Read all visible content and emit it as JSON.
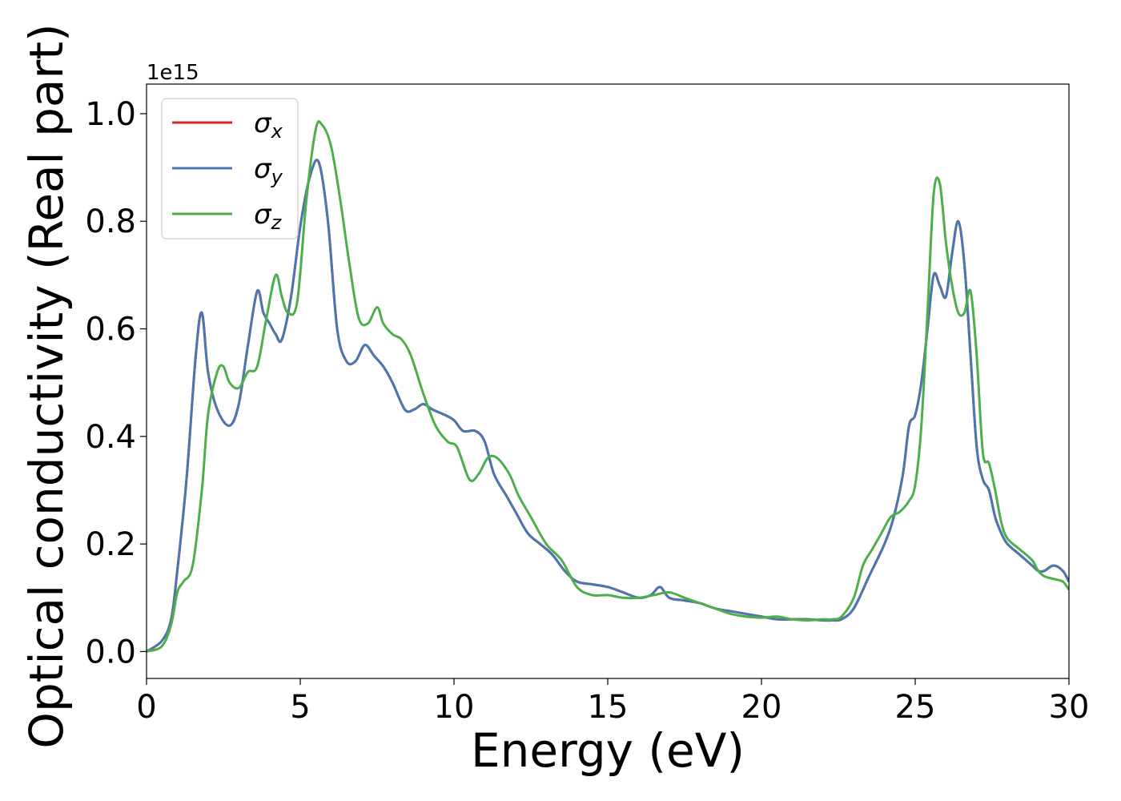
{
  "chart_data": {
    "type": "line",
    "xlabel": "Energy (eV)",
    "ylabel": "Optical conductivity (Real part)",
    "offset_text": "1e15",
    "xlim": [
      0,
      30
    ],
    "ylim": [
      -0.05,
      1.055
    ],
    "x_ticks": [
      0,
      5,
      10,
      15,
      20,
      25,
      30
    ],
    "x_tick_labels": [
      "0",
      "5",
      "10",
      "15",
      "20",
      "25",
      "30"
    ],
    "y_ticks": [
      0.0,
      0.2,
      0.4,
      0.6,
      0.8,
      1.0
    ],
    "y_tick_labels": [
      "0.0",
      "0.2",
      "0.4",
      "0.6",
      "0.8",
      "1.0"
    ],
    "grid": false,
    "legend_position": "top-left",
    "series": [
      {
        "name": "σx",
        "symbol": "σ",
        "subscript": "x",
        "color": "#d62728",
        "x": [
          0,
          0.5,
          0.8,
          1.0,
          1.3,
          1.6,
          1.8,
          2.0,
          2.3,
          2.7,
          3.0,
          3.3,
          3.6,
          3.8,
          4.0,
          4.2,
          4.4,
          4.7,
          5.0,
          5.3,
          5.6,
          5.9,
          6.2,
          6.5,
          6.8,
          7.1,
          7.4,
          7.7,
          8.0,
          8.4,
          8.7,
          9.0,
          9.3,
          9.7,
          10.0,
          10.3,
          10.7,
          11.0,
          11.3,
          11.7,
          12.0,
          12.4,
          12.8,
          13.2,
          13.6,
          14.0,
          14.5,
          15.0,
          15.5,
          16.0,
          16.4,
          16.7,
          17.0,
          17.5,
          18.0,
          18.5,
          19.0,
          19.5,
          20.0,
          20.5,
          21.0,
          21.5,
          22.0,
          22.3,
          22.6,
          23.0,
          23.5,
          24.0,
          24.3,
          24.6,
          24.8,
          25.0,
          25.2,
          25.4,
          25.6,
          25.8,
          26.0,
          26.2,
          26.4,
          26.6,
          26.8,
          27.0,
          27.2,
          27.4,
          27.6,
          27.8,
          28.0,
          28.4,
          28.8,
          29.0,
          29.2,
          29.5,
          29.8,
          30.0
        ],
        "y": [
          0.0,
          0.02,
          0.06,
          0.15,
          0.32,
          0.55,
          0.63,
          0.52,
          0.45,
          0.42,
          0.46,
          0.57,
          0.67,
          0.63,
          0.61,
          0.59,
          0.58,
          0.66,
          0.79,
          0.88,
          0.91,
          0.8,
          0.6,
          0.54,
          0.54,
          0.57,
          0.55,
          0.53,
          0.5,
          0.45,
          0.45,
          0.46,
          0.45,
          0.44,
          0.43,
          0.41,
          0.41,
          0.39,
          0.33,
          0.29,
          0.26,
          0.22,
          0.2,
          0.18,
          0.15,
          0.13,
          0.125,
          0.12,
          0.11,
          0.1,
          0.105,
          0.12,
          0.1,
          0.095,
          0.09,
          0.08,
          0.075,
          0.07,
          0.065,
          0.06,
          0.06,
          0.06,
          0.058,
          0.058,
          0.06,
          0.08,
          0.14,
          0.2,
          0.25,
          0.33,
          0.42,
          0.44,
          0.5,
          0.6,
          0.7,
          0.68,
          0.66,
          0.74,
          0.8,
          0.72,
          0.55,
          0.38,
          0.32,
          0.3,
          0.25,
          0.22,
          0.2,
          0.18,
          0.16,
          0.15,
          0.15,
          0.16,
          0.15,
          0.13
        ]
      },
      {
        "name": "σy",
        "symbol": "σ",
        "subscript": "y",
        "color": "#4a77b0",
        "x": [
          0,
          0.5,
          0.8,
          1.0,
          1.3,
          1.6,
          1.8,
          2.0,
          2.3,
          2.7,
          3.0,
          3.3,
          3.6,
          3.8,
          4.0,
          4.2,
          4.4,
          4.7,
          5.0,
          5.3,
          5.6,
          5.9,
          6.2,
          6.5,
          6.8,
          7.1,
          7.4,
          7.7,
          8.0,
          8.4,
          8.7,
          9.0,
          9.3,
          9.7,
          10.0,
          10.3,
          10.7,
          11.0,
          11.3,
          11.7,
          12.0,
          12.4,
          12.8,
          13.2,
          13.6,
          14.0,
          14.5,
          15.0,
          15.5,
          16.0,
          16.4,
          16.7,
          17.0,
          17.5,
          18.0,
          18.5,
          19.0,
          19.5,
          20.0,
          20.5,
          21.0,
          21.5,
          22.0,
          22.3,
          22.6,
          23.0,
          23.5,
          24.0,
          24.3,
          24.6,
          24.8,
          25.0,
          25.2,
          25.4,
          25.6,
          25.8,
          26.0,
          26.2,
          26.4,
          26.6,
          26.8,
          27.0,
          27.2,
          27.4,
          27.6,
          27.8,
          28.0,
          28.4,
          28.8,
          29.0,
          29.2,
          29.5,
          29.8,
          30.0
        ],
        "y": [
          0.0,
          0.02,
          0.06,
          0.15,
          0.32,
          0.55,
          0.63,
          0.52,
          0.45,
          0.42,
          0.46,
          0.57,
          0.67,
          0.63,
          0.61,
          0.59,
          0.58,
          0.66,
          0.79,
          0.88,
          0.91,
          0.8,
          0.6,
          0.54,
          0.54,
          0.57,
          0.55,
          0.53,
          0.5,
          0.45,
          0.45,
          0.46,
          0.45,
          0.44,
          0.43,
          0.41,
          0.41,
          0.39,
          0.33,
          0.29,
          0.26,
          0.22,
          0.2,
          0.18,
          0.15,
          0.13,
          0.125,
          0.12,
          0.11,
          0.1,
          0.105,
          0.12,
          0.1,
          0.095,
          0.09,
          0.08,
          0.075,
          0.07,
          0.065,
          0.06,
          0.06,
          0.06,
          0.058,
          0.058,
          0.06,
          0.08,
          0.14,
          0.2,
          0.25,
          0.33,
          0.42,
          0.44,
          0.5,
          0.6,
          0.7,
          0.68,
          0.66,
          0.74,
          0.8,
          0.72,
          0.55,
          0.38,
          0.32,
          0.3,
          0.25,
          0.22,
          0.2,
          0.18,
          0.16,
          0.15,
          0.15,
          0.16,
          0.15,
          0.13
        ]
      },
      {
        "name": "σz",
        "symbol": "σ",
        "subscript": "z",
        "color": "#4daf4a",
        "x": [
          0,
          0.5,
          0.8,
          1.0,
          1.2,
          1.5,
          1.8,
          2.0,
          2.3,
          2.5,
          2.7,
          3.0,
          3.3,
          3.6,
          3.9,
          4.2,
          4.4,
          4.6,
          4.9,
          5.2,
          5.5,
          5.7,
          6.0,
          6.3,
          6.6,
          6.9,
          7.2,
          7.5,
          7.7,
          8.0,
          8.3,
          8.6,
          9.0,
          9.4,
          9.8,
          10.1,
          10.5,
          10.8,
          11.1,
          11.4,
          11.8,
          12.1,
          12.5,
          13.0,
          13.5,
          14.0,
          14.5,
          15.0,
          15.5,
          16.0,
          16.5,
          17.0,
          17.5,
          18.0,
          18.5,
          19.0,
          19.5,
          20.0,
          20.5,
          21.0,
          21.5,
          22.0,
          22.3,
          22.6,
          23.0,
          23.3,
          23.6,
          23.9,
          24.2,
          24.5,
          24.8,
          25.0,
          25.2,
          25.4,
          25.6,
          25.8,
          26.0,
          26.2,
          26.4,
          26.6,
          26.8,
          27.0,
          27.2,
          27.4,
          27.6,
          27.8,
          28.0,
          28.4,
          28.8,
          29.0,
          29.2,
          29.5,
          29.8,
          30.0
        ],
        "y": [
          0.0,
          0.01,
          0.05,
          0.11,
          0.13,
          0.16,
          0.3,
          0.44,
          0.52,
          0.53,
          0.5,
          0.49,
          0.52,
          0.53,
          0.62,
          0.7,
          0.66,
          0.63,
          0.65,
          0.84,
          0.97,
          0.98,
          0.94,
          0.84,
          0.72,
          0.62,
          0.61,
          0.64,
          0.61,
          0.59,
          0.58,
          0.55,
          0.48,
          0.42,
          0.39,
          0.38,
          0.32,
          0.33,
          0.36,
          0.36,
          0.33,
          0.29,
          0.25,
          0.2,
          0.17,
          0.12,
          0.105,
          0.105,
          0.1,
          0.1,
          0.105,
          0.11,
          0.1,
          0.09,
          0.08,
          0.07,
          0.065,
          0.063,
          0.065,
          0.06,
          0.058,
          0.06,
          0.06,
          0.065,
          0.1,
          0.16,
          0.19,
          0.22,
          0.25,
          0.26,
          0.28,
          0.31,
          0.42,
          0.63,
          0.85,
          0.87,
          0.76,
          0.68,
          0.63,
          0.63,
          0.67,
          0.55,
          0.37,
          0.35,
          0.3,
          0.24,
          0.21,
          0.19,
          0.17,
          0.15,
          0.14,
          0.135,
          0.13,
          0.115
        ]
      }
    ]
  }
}
